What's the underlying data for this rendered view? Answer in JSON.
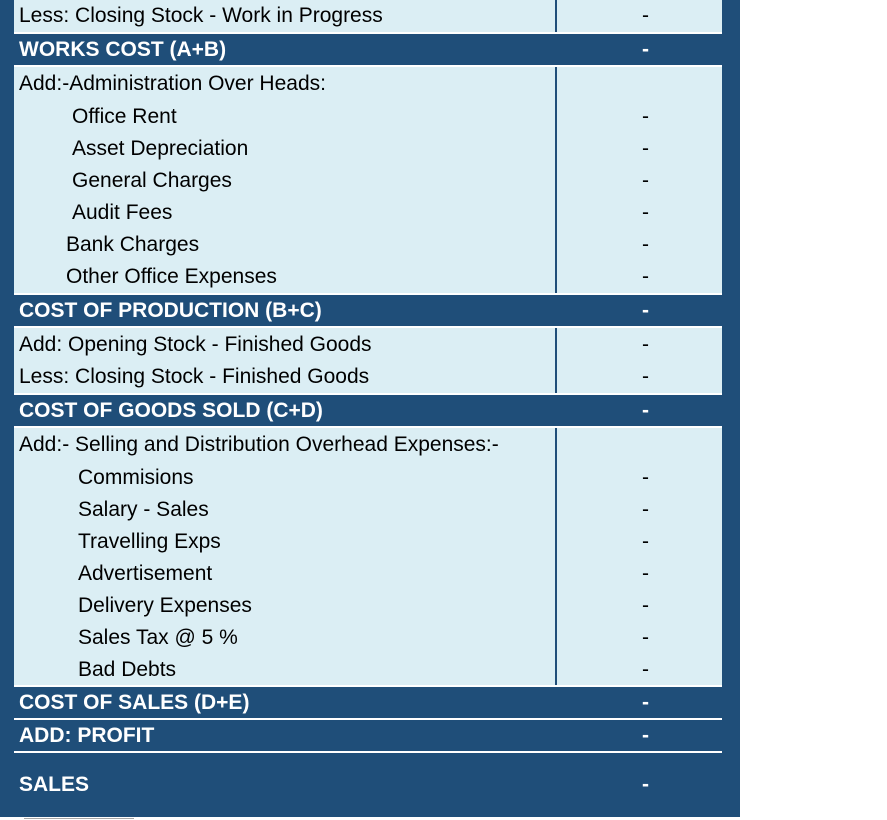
{
  "rows": [
    {
      "type": "light",
      "indent": 0,
      "label": "Less: Closing Stock - Work in Progress",
      "value": "-",
      "neg": true
    },
    {
      "type": "dark",
      "indent": 0,
      "label": "WORKS COST (A+B)",
      "value": "-"
    },
    {
      "type": "light",
      "indent": 0,
      "label": "Add:-Administration Over  Heads:",
      "value": ""
    },
    {
      "type": "light",
      "indent": 1,
      "label": "Office Rent",
      "value": "-"
    },
    {
      "type": "light",
      "indent": 1,
      "label": "Asset Depreciation",
      "value": "-"
    },
    {
      "type": "light",
      "indent": 1,
      "label": "General Charges",
      "value": "-"
    },
    {
      "type": "light",
      "indent": 1,
      "label": "Audit Fees",
      "value": "-"
    },
    {
      "type": "light",
      "indent": 2,
      "label": "Bank Charges",
      "value": "-"
    },
    {
      "type": "light",
      "indent": 2,
      "label": "Other Office Expenses",
      "value": "-"
    },
    {
      "type": "dark",
      "indent": 0,
      "label": "COST  OF PRODUCTION (B+C)",
      "value": "-"
    },
    {
      "type": "light",
      "indent": 0,
      "label": "Add: Opening Stock - Finished Goods",
      "value": "-"
    },
    {
      "type": "light",
      "indent": 0,
      "label": "Less: Closing Stock - Finished Goods",
      "value": "-",
      "neg": true
    },
    {
      "type": "dark",
      "indent": 0,
      "label": "COST OF GOODS SOLD (C+D)",
      "value": "-"
    },
    {
      "type": "light",
      "indent": 0,
      "label": "Add:- Selling and Distribution Overhead Expenses:-",
      "value": ""
    },
    {
      "type": "light",
      "indent": 3,
      "label": "Commisions",
      "value": "-"
    },
    {
      "type": "light",
      "indent": 3,
      "label": "Salary - Sales",
      "value": "-"
    },
    {
      "type": "light",
      "indent": 3,
      "label": "Travelling Exps",
      "value": "-"
    },
    {
      "type": "light",
      "indent": 3,
      "label": "Advertisement",
      "value": "-"
    },
    {
      "type": "light",
      "indent": 3,
      "label": "Delivery Expenses",
      "value": "-"
    },
    {
      "type": "light",
      "indent": 3,
      "label": "Sales Tax @ 5 %",
      "value": "-"
    },
    {
      "type": "light",
      "indent": 3,
      "label": "Bad Debts",
      "value": "-"
    },
    {
      "type": "dark",
      "indent": 0,
      "label": "COST OF SALES (D+E)",
      "value": "-"
    },
    {
      "type": "dark",
      "indent": 0,
      "label": "ADD: PROFIT",
      "value": "-"
    },
    {
      "type": "dark",
      "indent": 0,
      "label": "SALES",
      "value": "-"
    }
  ]
}
